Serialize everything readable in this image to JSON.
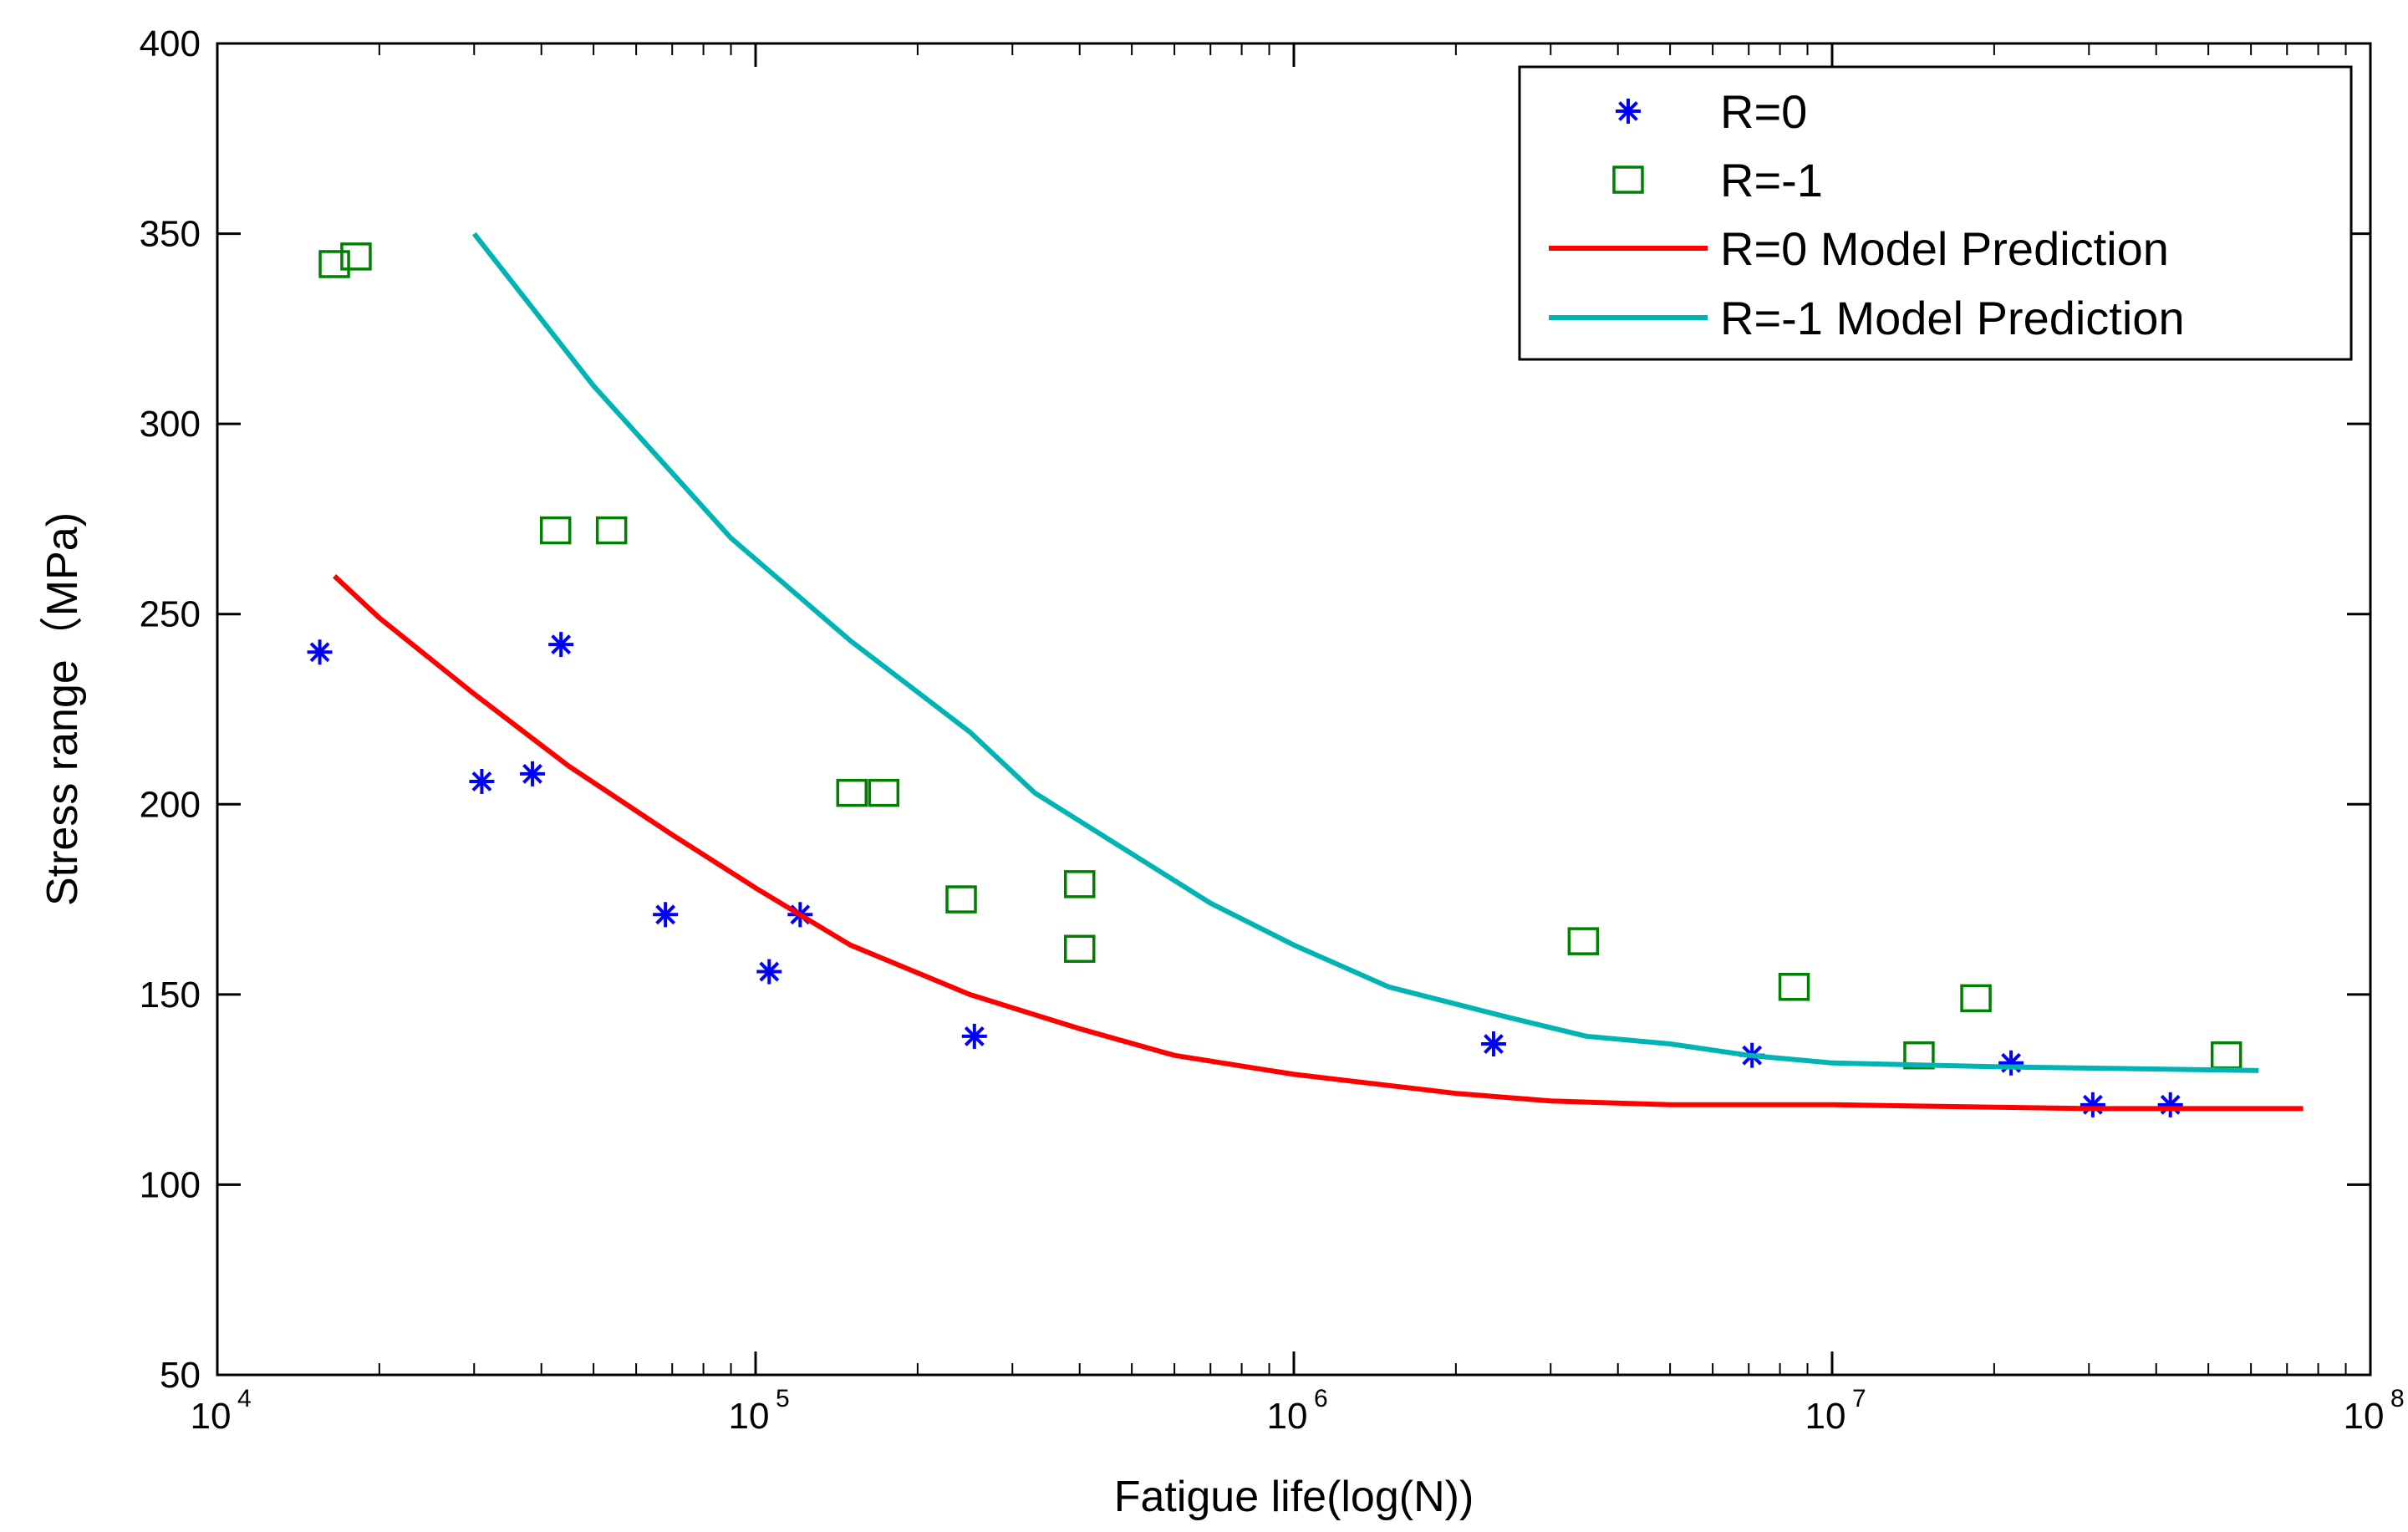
{
  "chart_data": {
    "type": "scatter",
    "title": "",
    "xlabel": "Fatigue life(log(N))",
    "ylabel": "Stress range（MPa)",
    "xscale": "log",
    "xlim": [
      10000,
      100000000
    ],
    "ylim": [
      50,
      400
    ],
    "grid": false,
    "legend_position": "top-right",
    "x_ticks": [
      {
        "base": "10",
        "exp": "4"
      },
      {
        "base": "10",
        "exp": "5"
      },
      {
        "base": "10",
        "exp": "6"
      },
      {
        "base": "10",
        "exp": "7"
      },
      {
        "base": "10",
        "exp": "8"
      }
    ],
    "y_ticks": [
      "50",
      "100",
      "150",
      "200",
      "250",
      "300",
      "350",
      "400"
    ],
    "series": [
      {
        "name": "R=0",
        "kind": "scatter",
        "marker": "star",
        "color": "#0000ff",
        "points": [
          [
            15500,
            240
          ],
          [
            31000,
            206
          ],
          [
            38500,
            208
          ],
          [
            43500,
            242
          ],
          [
            68000,
            171
          ],
          [
            106000,
            156
          ],
          [
            121000,
            171
          ],
          [
            255000,
            139
          ],
          [
            2350000,
            137
          ],
          [
            7100000,
            134
          ],
          [
            21500000,
            132
          ],
          [
            30500000,
            121
          ],
          [
            42500000,
            121
          ]
        ]
      },
      {
        "name": "R=-1",
        "kind": "scatter",
        "marker": "square",
        "color": "#008000",
        "points": [
          [
            16500,
            342
          ],
          [
            18100,
            344
          ],
          [
            42500,
            272
          ],
          [
            54000,
            272
          ],
          [
            151000,
            203
          ],
          [
            173000,
            203
          ],
          [
            241000,
            175
          ],
          [
            400000,
            179
          ],
          [
            400000,
            162
          ],
          [
            3450000,
            164
          ],
          [
            8500000,
            152
          ],
          [
            14500000,
            134
          ],
          [
            18500000,
            149
          ],
          [
            54000000,
            134
          ]
        ]
      },
      {
        "name": "R=0 Model Prediction",
        "kind": "line",
        "color": "#ff0000",
        "points": [
          [
            16500,
            260
          ],
          [
            20000,
            249
          ],
          [
            30000,
            229
          ],
          [
            45000,
            210
          ],
          [
            70000,
            192
          ],
          [
            100000,
            178
          ],
          [
            150000,
            163
          ],
          [
            250000,
            150
          ],
          [
            400000,
            141
          ],
          [
            600000,
            134
          ],
          [
            1000000,
            129
          ],
          [
            2000000,
            124
          ],
          [
            3000000,
            122
          ],
          [
            5000000,
            121
          ],
          [
            10000000,
            121
          ],
          [
            30000000,
            120
          ],
          [
            75000000,
            120
          ]
        ]
      },
      {
        "name": "R=-1 Model Prediction",
        "kind": "line",
        "color": "#00b4b4",
        "points": [
          [
            30000,
            350
          ],
          [
            50000,
            310
          ],
          [
            90000,
            270
          ],
          [
            150000,
            243
          ],
          [
            250000,
            219
          ],
          [
            330000,
            203
          ],
          [
            500000,
            187
          ],
          [
            700000,
            174
          ],
          [
            1000000,
            163
          ],
          [
            1500000,
            152
          ],
          [
            2500000,
            144
          ],
          [
            3500000,
            139
          ],
          [
            5000000,
            137
          ],
          [
            7000000,
            134
          ],
          [
            10000000,
            132
          ],
          [
            20000000,
            131
          ],
          [
            62000000,
            130
          ]
        ]
      }
    ]
  }
}
